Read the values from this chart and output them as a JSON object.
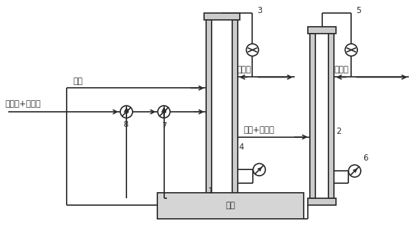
{
  "labels": {
    "feed": "新己烷+环戊烷",
    "solvent": "溶剤",
    "neohexane": "新己烷",
    "cyclopentane": "环戊烷",
    "solvent_cyclo": "溶剤+环戊烷",
    "solvent_bottom": "溶剤",
    "num1": "1",
    "num2": "2",
    "num3": "3",
    "num4": "4",
    "num5": "5",
    "num6": "6",
    "num7": "7",
    "num8": "8"
  },
  "figsize": [
    6.04,
    3.28
  ],
  "dpi": 100,
  "lc": "#2a2a2a",
  "lw": 1.3,
  "fs": 8.5,
  "wall_color": "#cccccc",
  "tank_color": "#d5d5d5"
}
